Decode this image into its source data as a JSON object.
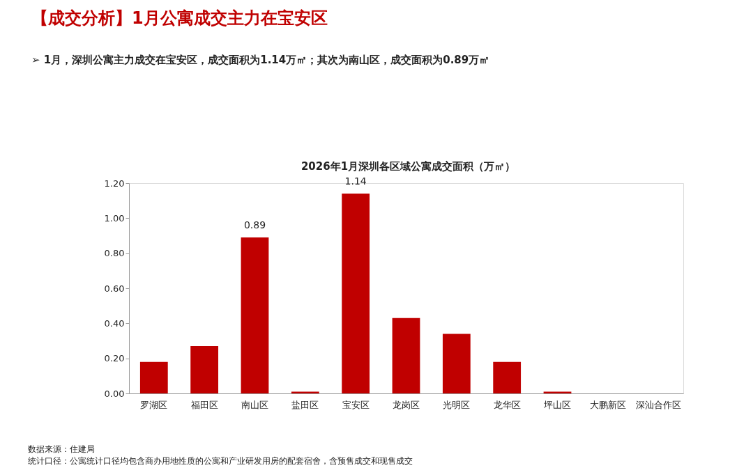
{
  "chart_data": {
    "type": "bar",
    "title": "【成交分析】1月公寓成交主力在宝安区",
    "subtitle": "➢ 1月，深圳公寓主力成交在宝安区，成交面积为1.14万㎡；其次为南山区，成交面积为0.89万㎡",
    "annotations": [
      "2026年1月深圳各区域公寓成交面积（万㎡）",
      "数据来源：住建局",
      "统计口径：公寓统计口径均包含商办用地性质的公寓和产业研发用房的配套宿舍，含预售成交和现售成交"
    ],
    "categories": [
      "罗湖区",
      "福田区",
      "南山区",
      "盐田区",
      "宝安区",
      "龙岗区",
      "光明区",
      "龙华区",
      "坪山区",
      "大鹏新区",
      "深汕合作区"
    ],
    "values": [
      0.18,
      0.27,
      0.89,
      0.01,
      1.14,
      0.43,
      0.34,
      0.18,
      0.01,
      0,
      0
    ],
    "value_labels": [
      null,
      null,
      "0.89",
      null,
      "1.14",
      null,
      null,
      null,
      null,
      null,
      null
    ],
    "color": "#c00000",
    "ylim": [
      0,
      1.2
    ],
    "yticks": [
      {
        "value": 0,
        "label": "0.00"
      },
      {
        "value": 0.2,
        "label": "0.20"
      },
      {
        "value": 0.4,
        "label": "0.40"
      },
      {
        "value": 0.6,
        "label": "0.60"
      },
      {
        "value": 0.8,
        "label": "0.80"
      },
      {
        "value": 1.0,
        "label": "1.00"
      },
      {
        "value": 1.2,
        "label": "1.20"
      }
    ],
    "grid": false
  }
}
